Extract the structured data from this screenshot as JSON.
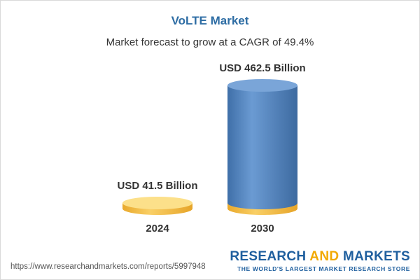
{
  "chart_data": {
    "type": "bar",
    "title": "VoLTE Market",
    "subtitle": "Market forecast to grow at a CAGR of 49.4%",
    "categories": [
      "2024",
      "2030"
    ],
    "values": [
      41.5,
      462.5
    ],
    "value_labels": [
      "USD 41.5 Billion",
      "USD 462.5 Billion"
    ],
    "unit": "USD Billion"
  },
  "footer": {
    "url": "https://www.researchandmarkets.com/reports/5997948",
    "brand_part1": "RESEARCH ",
    "brand_part2": "AND",
    "brand_part3": " MARKETS",
    "tagline": "THE WORLD'S LARGEST MARKET RESEARCH STORE"
  },
  "colors": {
    "title": "#2e6da4",
    "bar_body": "#5b8cc6",
    "bar_top": "#7aa5d8",
    "base_body": "#f5c151",
    "base_top": "#fce08a"
  }
}
